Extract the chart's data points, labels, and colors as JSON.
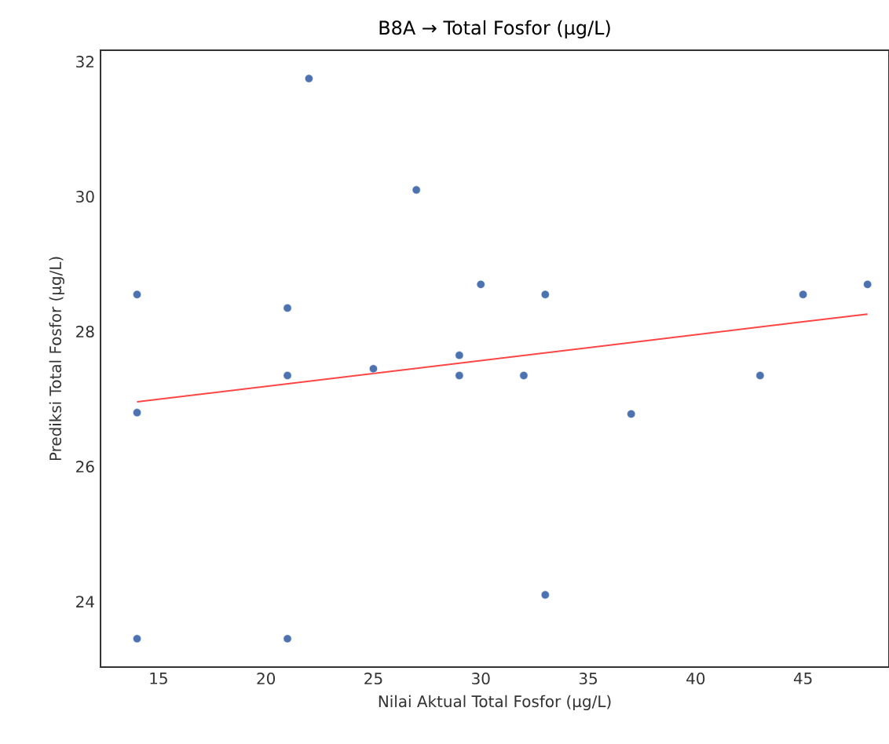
{
  "chart_data": {
    "type": "scatter",
    "title": "B8A → Total Fosfor (µg/L)",
    "xlabel": "Nilai Aktual Total Fosfor (µg/L)",
    "ylabel": "Prediksi Total Fosfor (µg/L)",
    "xlim": [
      12.3,
      49.0
    ],
    "ylim": [
      23.03,
      32.17
    ],
    "xticks": [
      15,
      20,
      25,
      30,
      35,
      40,
      45
    ],
    "yticks": [
      24,
      26,
      28,
      30,
      32
    ],
    "grid": false,
    "marker": "circle",
    "series": [
      {
        "color": "#4c72b0",
        "x": [
          14,
          14,
          14,
          21,
          21,
          21,
          22,
          25,
          27,
          30,
          29,
          29,
          32,
          33,
          33,
          37,
          43,
          45,
          48
        ],
        "values": [
          28.55,
          26.8,
          23.45,
          28.35,
          27.35,
          23.45,
          31.75,
          27.45,
          30.1,
          28.7,
          27.65,
          27.35,
          27.35,
          28.55,
          24.1,
          26.78,
          27.35,
          28.55,
          28.7
        ]
      },
      {
        "type": "line",
        "color": "#ff4444",
        "x": [
          14,
          48
        ],
        "values": [
          26.96,
          28.26
        ],
        "marker": "none"
      }
    ]
  }
}
